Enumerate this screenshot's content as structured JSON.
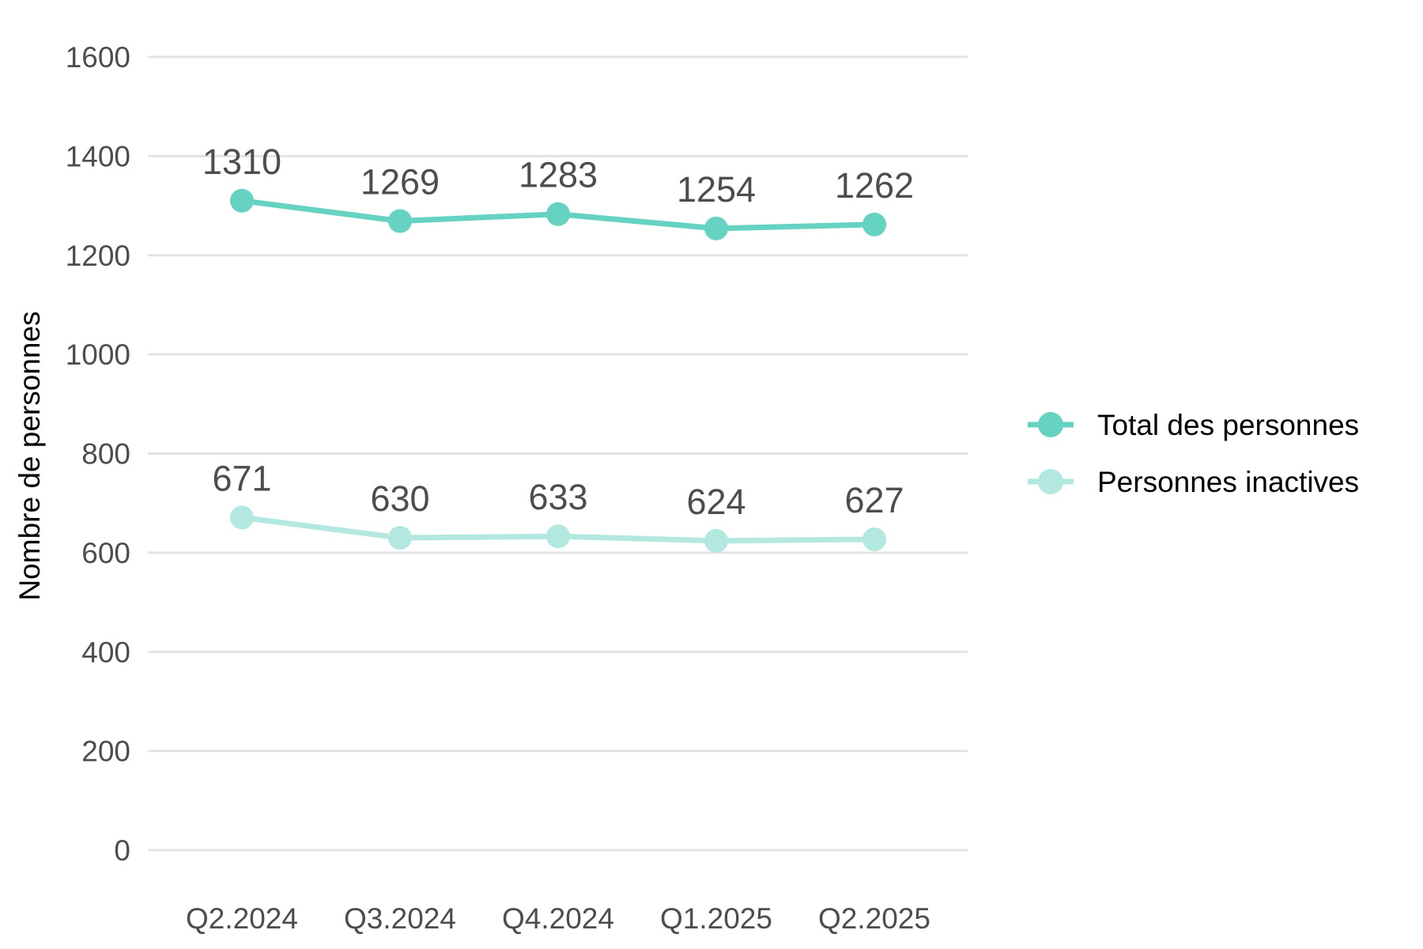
{
  "chart_data": {
    "type": "line",
    "title": "",
    "xlabel": "",
    "ylabel": "Nombre de personnes",
    "categories": [
      "Q2.2024",
      "Q3.2024",
      "Q4.2024",
      "Q1.2025",
      "Q2.2025"
    ],
    "ylim": [
      0,
      1600
    ],
    "yticks": [
      0,
      200,
      400,
      600,
      800,
      1000,
      1200,
      1400,
      1600
    ],
    "grid": "horizontal",
    "legend_position": "right",
    "data_labels": true,
    "series": [
      {
        "name": "Total des personnes",
        "values": [
          1310,
          1269,
          1283,
          1254,
          1262
        ],
        "color": "#66d2c1"
      },
      {
        "name": "Personnes inactives",
        "values": [
          671,
          630,
          633,
          624,
          627
        ],
        "color": "#b2e8df"
      }
    ]
  }
}
